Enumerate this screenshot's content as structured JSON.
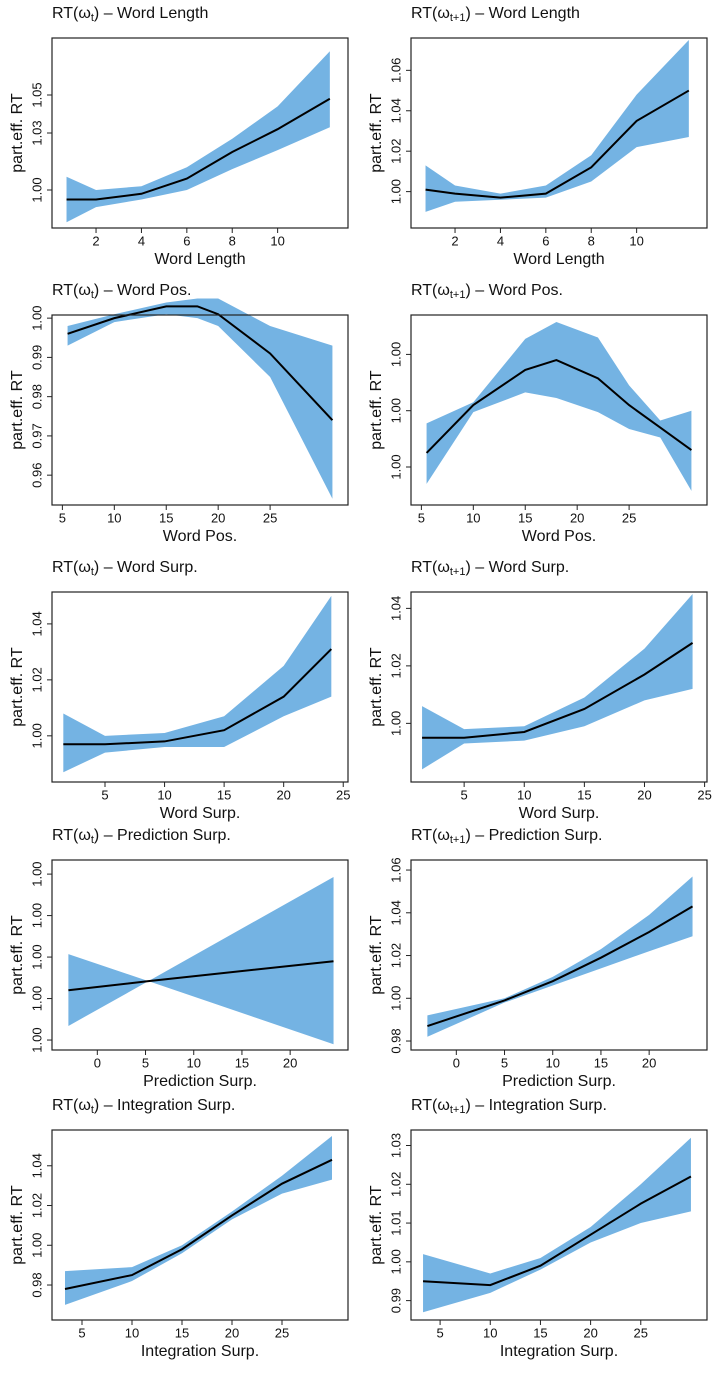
{
  "chart_data": [
    {
      "type": "line",
      "title_prefix": "RT(ω",
      "title_sub": "t",
      "title_suffix": ") – Word Length",
      "xlabel": "Word Length",
      "ylabel": "part.eff. RT",
      "color": "#000000",
      "band_color": "#74b3e3",
      "x": [
        0.7,
        2,
        4,
        6,
        8,
        10,
        12.3
      ],
      "values": [
        0.995,
        0.995,
        0.998,
        1.006,
        1.02,
        1.032,
        1.048
      ],
      "lower": [
        0.983,
        0.991,
        0.995,
        1.0,
        1.011,
        1.021,
        1.033
      ],
      "upper": [
        1.007,
        1.0,
        1.002,
        1.012,
        1.027,
        1.044,
        1.073
      ],
      "xlim": [
        0.06,
        13.1
      ],
      "xticks": [
        2,
        4,
        6,
        8,
        10
      ],
      "ylim": [
        0.98,
        1.08
      ],
      "yticks": [
        {
          "value": 1,
          "label": "1.00"
        },
        1.03,
        1.05
      ]
    },
    {
      "type": "line",
      "title_prefix": "RT(ω",
      "title_sub": "t+1",
      "title_suffix": ") – Word Length",
      "xlabel": "Word Length",
      "ylabel": "part.eff. RT",
      "color": "#000000",
      "band_color": "#74b3e3",
      "x": [
        0.7,
        2,
        4,
        6,
        8,
        10,
        12.3
      ],
      "values": [
        1.001,
        0.999,
        0.997,
        0.999,
        1.012,
        1.035,
        1.05
      ],
      "lower": [
        0.99,
        0.995,
        0.996,
        0.997,
        1.005,
        1.022,
        1.027
      ],
      "upper": [
        1.013,
        1.003,
        0.999,
        1.003,
        1.018,
        1.048,
        1.075
      ],
      "xlim": [
        0.06,
        13.1
      ],
      "xticks": [
        2,
        4,
        6,
        8,
        10
      ],
      "ylim": [
        0.982,
        1.076
      ],
      "yticks": [
        {
          "value": 1,
          "label": "1.00"
        },
        1.02,
        1.04,
        1.06
      ]
    },
    {
      "type": "line",
      "title_prefix": "RT(ω",
      "title_sub": "t",
      "title_suffix": ") – Word Pos.",
      "xlabel": "Word Pos.",
      "ylabel": "part.eff. RT",
      "color": "#000000",
      "band_color": "#74b3e3",
      "x": [
        5.5,
        10,
        15,
        18,
        20,
        25,
        31
      ],
      "values": [
        0.996,
        1.0,
        1.003,
        1.003,
        1.001,
        0.991,
        0.974
      ],
      "lower": [
        0.993,
        0.999,
        1.001,
        1.0,
        0.998,
        0.985,
        0.954
      ],
      "upper": [
        0.998,
        1.001,
        1.004,
        1.005,
        1.005,
        0.998,
        0.993
      ],
      "xlim": [
        4,
        32.5
      ],
      "xticks": [
        5,
        10,
        15,
        20,
        25
      ],
      "ylim": [
        0.9524,
        1.0008
      ],
      "yticks": [
        0.96,
        0.97,
        0.98,
        0.99,
        {
          "value": 1,
          "label": "1.00"
        }
      ]
    },
    {
      "type": "line",
      "title_prefix": "RT(ω",
      "title_sub": "t+1",
      "title_suffix": ") – Word Pos.",
      "xlabel": "Word Pos.",
      "ylabel": "part.eff. RT",
      "color": "#000000",
      "band_color": "#74b3e3",
      "x": [
        5.5,
        10,
        15,
        18,
        22,
        25,
        28,
        31
      ],
      "values": [
        0.9997,
        1.00004,
        1.00029,
        1.00036,
        1.00023,
        1.00004,
        0.99988,
        0.99972
      ],
      "lower": [
        0.99948,
        0.99999,
        1.00013,
        1.00009,
        0.99999,
        0.99987,
        0.99981,
        0.99943
      ],
      "upper": [
        0.99991,
        1.00006,
        1.00051,
        1.00063,
        1.00052,
        1.00018,
        0.99993,
        1.0
      ],
      "xlim": [
        4,
        32.5
      ],
      "xticks": [
        5,
        10,
        15,
        20,
        25
      ],
      "ylim": [
        0.99933,
        1.00068
      ],
      "yticks": [
        {
          "value": 0.9996,
          "label": "1.00"
        },
        {
          "value": 1.0,
          "label": "1.00"
        },
        {
          "value": 1.0004,
          "label": "1.00"
        }
      ]
    },
    {
      "type": "line",
      "title_prefix": "RT(ω",
      "title_sub": "t",
      "title_suffix": ") – Word Surp.",
      "xlabel": "Word Surp.",
      "ylabel": "part.eff. RT",
      "color": "#000000",
      "band_color": "#74b3e3",
      "x": [
        1.5,
        5,
        10,
        15,
        20,
        24
      ],
      "values": [
        0.997,
        0.997,
        0.998,
        1.002,
        1.014,
        1.031
      ],
      "lower": [
        0.987,
        0.994,
        0.996,
        0.996,
        1.007,
        1.014
      ],
      "upper": [
        1.008,
        1.0,
        1.001,
        1.007,
        1.025,
        1.05
      ],
      "xlim": [
        0.55,
        25.4
      ],
      "xticks": [
        5,
        10,
        15,
        20,
        25
      ],
      "ylim": [
        0.9835,
        1.0514
      ],
      "yticks": [
        {
          "value": 1,
          "label": "1.00"
        },
        1.02,
        1.04
      ]
    },
    {
      "type": "line",
      "title_prefix": "RT(ω",
      "title_sub": "t+1",
      "title_suffix": ") – Word Surp.",
      "xlabel": "Word Surp.",
      "ylabel": "part.eff. RT",
      "color": "#000000",
      "band_color": "#74b3e3",
      "x": [
        1.5,
        5,
        10,
        15,
        20,
        24
      ],
      "values": [
        0.995,
        0.995,
        0.997,
        1.005,
        1.017,
        1.028
      ],
      "lower": [
        0.984,
        0.993,
        0.994,
        0.999,
        1.008,
        1.012
      ],
      "upper": [
        1.006,
        0.998,
        0.999,
        1.009,
        1.026,
        1.045
      ],
      "xlim": [
        0.58,
        25.2
      ],
      "xticks": [
        5,
        10,
        15,
        20,
        25
      ],
      "ylim": [
        0.9796,
        1.0457
      ],
      "yticks": [
        {
          "value": 1,
          "label": "1.00"
        },
        1.02,
        1.04
      ]
    },
    {
      "type": "line",
      "title_prefix": "RT(ω",
      "title_sub": "t",
      "title_suffix": ") – Prediction Surp.",
      "xlabel": "Prediction Surp.",
      "ylabel": "part.eff. RT",
      "color": "#000000",
      "band_color": "#74b3e3",
      "x": [
        -3,
        5.3,
        24.5
      ],
      "values": [
        0.9992,
        0.99942,
        0.9999
      ],
      "lower": [
        0.99834,
        0.99942,
        0.9979
      ],
      "upper": [
        1.00007,
        0.99942,
        1.00193
      ],
      "xlim": [
        -4.7,
        26
      ],
      "xticks": [
        0,
        5,
        10,
        15,
        20
      ],
      "ylim": [
        0.99776,
        1.00234
      ],
      "yticks": [
        {
          "value": 0.998,
          "label": "1.00"
        },
        {
          "value": 0.999,
          "label": "1.00"
        },
        {
          "value": 1.0,
          "label": "1.00"
        },
        {
          "value": 1.001,
          "label": "1.00"
        },
        {
          "value": 1.002,
          "label": "1.00"
        }
      ]
    },
    {
      "type": "line",
      "title_prefix": "RT(ω",
      "title_sub": "t+1",
      "title_suffix": ") – Prediction Surp.",
      "xlabel": "Prediction Surp.",
      "ylabel": "part.eff. RT",
      "color": "#000000",
      "band_color": "#74b3e3",
      "x": [
        -3,
        5,
        10,
        15,
        20,
        24.5
      ],
      "values": [
        0.987,
        0.999,
        1.008,
        1.019,
        1.031,
        1.043
      ],
      "lower": [
        0.982,
        0.998,
        1.006,
        1.014,
        1.022,
        1.029
      ],
      "upper": [
        0.992,
        1.0,
        1.01,
        1.023,
        1.039,
        1.057
      ],
      "xlim": [
        -4.7,
        26
      ],
      "xticks": [
        0,
        5,
        10,
        15,
        20
      ],
      "ylim": [
        0.9758,
        1.0647
      ],
      "yticks": [
        0.98,
        {
          "value": 1,
          "label": "1.00"
        },
        1.02,
        1.04,
        1.06
      ]
    },
    {
      "type": "line",
      "title_prefix": "RT(ω",
      "title_sub": "t",
      "title_suffix": ") – Integration Surp.",
      "xlabel": "Integration Surp.",
      "ylabel": "part.eff. RT",
      "color": "#000000",
      "band_color": "#74b3e3",
      "x": [
        3.3,
        10,
        15,
        20,
        25,
        30
      ],
      "values": [
        0.978,
        0.985,
        0.998,
        1.015,
        1.031,
        1.043
      ],
      "lower": [
        0.97,
        0.982,
        0.996,
        1.013,
        1.026,
        1.033
      ],
      "upper": [
        0.987,
        0.989,
        1.0,
        1.017,
        1.035,
        1.055
      ],
      "xlim": [
        2,
        31.6
      ],
      "xticks": [
        5,
        10,
        15,
        20,
        25
      ],
      "ylim": [
        0.9624,
        1.058
      ],
      "yticks": [
        0.98,
        {
          "value": 1,
          "label": "1.00"
        },
        1.02,
        1.04
      ]
    },
    {
      "type": "line",
      "title_prefix": "RT(ω",
      "title_sub": "t+1",
      "title_suffix": ") – Integration Surp.",
      "xlabel": "Integration Surp.",
      "ylabel": "part.eff. RT",
      "color": "#000000",
      "band_color": "#74b3e3",
      "x": [
        3.3,
        10,
        15,
        20,
        25,
        30
      ],
      "values": [
        0.995,
        0.994,
        0.999,
        1.007,
        1.015,
        1.022
      ],
      "lower": [
        0.987,
        0.992,
        0.998,
        1.005,
        1.01,
        1.013
      ],
      "upper": [
        1.002,
        0.997,
        1.001,
        1.009,
        1.02,
        1.032
      ],
      "xlim": [
        2.1,
        31.6
      ],
      "xticks": [
        5,
        10,
        15,
        20,
        25
      ],
      "ylim": [
        0.985,
        1.034
      ],
      "yticks": [
        0.99,
        {
          "value": 1,
          "label": "1.00"
        },
        1.01,
        1.02,
        1.03
      ]
    }
  ]
}
